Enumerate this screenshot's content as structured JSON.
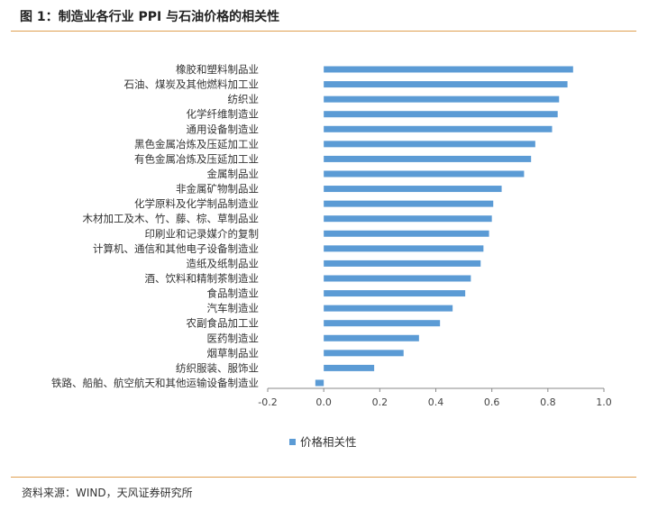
{
  "header": {
    "title": "图 1：制造业各行业 PPI 与石油价格的相关性"
  },
  "footer": {
    "source": "资料来源：WIND，天风证券研究所"
  },
  "chart_data": {
    "type": "bar",
    "orientation": "horizontal",
    "title": "",
    "xlabel": "",
    "ylabel": "",
    "xlim": [
      -0.2,
      1.0
    ],
    "xticks": [
      -0.2,
      0.0,
      0.2,
      0.4,
      0.6,
      0.8,
      1.0
    ],
    "xtick_labels": [
      "-0.2",
      "0.0",
      "0.2",
      "0.4",
      "0.6",
      "0.8",
      "1.0"
    ],
    "grid": false,
    "legend_position": "bottom",
    "bar_color": "#5b9bd5",
    "categories": [
      "橡胶和塑料制品业",
      "石油、煤炭及其他燃料加工业",
      "纺织业",
      "化学纤维制造业",
      "通用设备制造业",
      "黑色金属冶炼及压延加工业",
      "有色金属冶炼及压延加工业",
      "金属制品业",
      "非金属矿物制品业",
      "化学原料及化学制品制造业",
      "木材加工及木、竹、藤、棕、草制品业",
      "印刷业和记录媒介的复制",
      "计算机、通信和其他电子设备制造业",
      "造纸及纸制品业",
      "酒、饮料和精制茶制造业",
      "食品制造业",
      "汽车制造业",
      "农副食品加工业",
      "医药制造业",
      "烟草制品业",
      "纺织服装、服饰业",
      "铁路、船舶、航空航天和其他运输设备制造业"
    ],
    "series": [
      {
        "name": "价格相关性",
        "values": [
          0.89,
          0.87,
          0.84,
          0.835,
          0.815,
          0.755,
          0.74,
          0.715,
          0.635,
          0.605,
          0.6,
          0.59,
          0.57,
          0.56,
          0.525,
          0.505,
          0.46,
          0.415,
          0.34,
          0.285,
          0.18,
          -0.03
        ]
      }
    ]
  }
}
